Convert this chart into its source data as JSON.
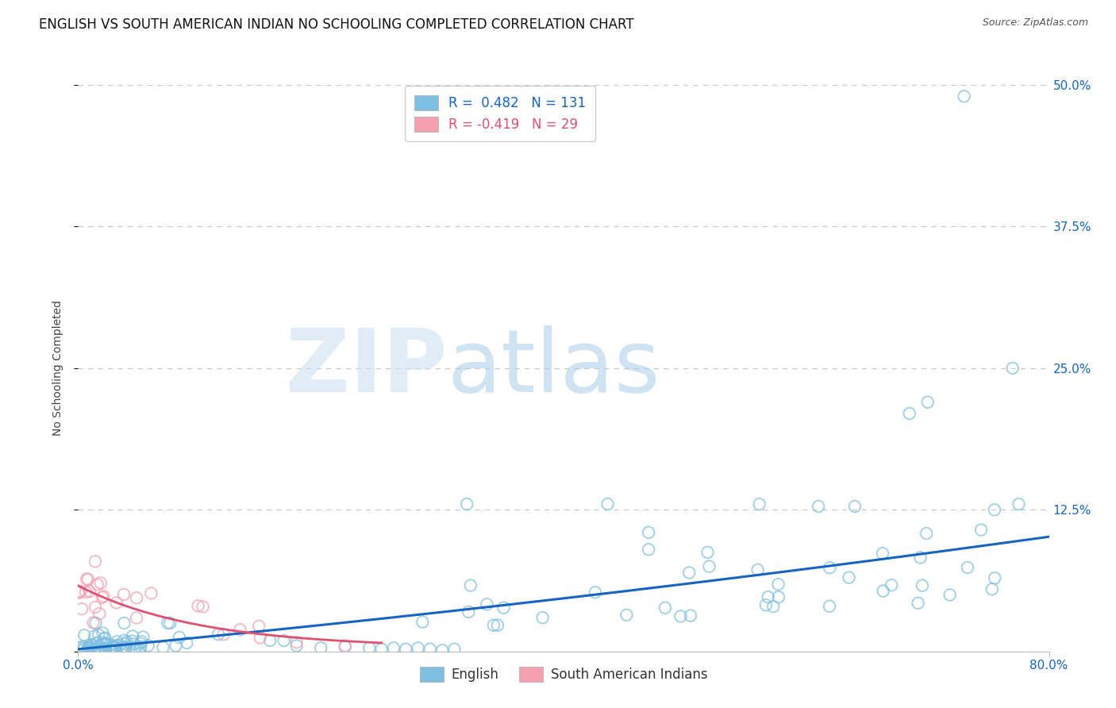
{
  "title": "ENGLISH VS SOUTH AMERICAN INDIAN NO SCHOOLING COMPLETED CORRELATION CHART",
  "source": "Source: ZipAtlas.com",
  "ylabel": "No Schooling Completed",
  "watermark_zip": "ZIP",
  "watermark_atlas": "atlas",
  "xlim": [
    0.0,
    0.8
  ],
  "ylim": [
    0.0,
    0.5
  ],
  "xtick_positions": [
    0.0,
    0.8
  ],
  "xtick_labels": [
    "0.0%",
    "80.0%"
  ],
  "yticks": [
    0.0,
    0.125,
    0.25,
    0.375,
    0.5
  ],
  "ytick_labels": [
    "",
    "12.5%",
    "25.0%",
    "37.5%",
    "50.0%"
  ],
  "legend1_label": "R =  0.482   N = 131",
  "legend2_label": "R = -0.419   N = 29",
  "blue_color": "#7fbfdf",
  "pink_color": "#f4a0b0",
  "trend_blue": "#1565c0",
  "trend_pink": "#e05070",
  "title_fontsize": 12,
  "axis_label_fontsize": 10,
  "tick_fontsize": 11,
  "legend_fontsize": 12,
  "background_color": "#ffffff",
  "grid_color": "#c8c8c8",
  "blue_tick_color": "#1565c0",
  "source_color": "#555555"
}
